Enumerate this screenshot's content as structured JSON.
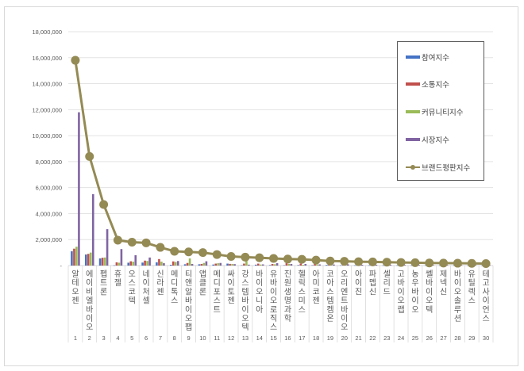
{
  "chart_data": {
    "type": "bar",
    "title": "",
    "xlabel": "",
    "ylabel": "",
    "ylim": [
      0,
      18000000
    ],
    "yticks": [
      0,
      2000000,
      4000000,
      6000000,
      8000000,
      10000000,
      12000000,
      14000000,
      16000000,
      18000000
    ],
    "ytick_labels": [
      "-",
      "2,000,000",
      "4,000,000",
      "6,000,000",
      "8,000,000",
      "10,000,000",
      "12,000,000",
      "14,000,000",
      "16,000,000",
      "18,000,000"
    ],
    "grid": true,
    "legend_position": "upper right",
    "ranks": [
      "1",
      "2",
      "3",
      "4",
      "5",
      "6",
      "7",
      "8",
      "9",
      "10",
      "11",
      "12",
      "13",
      "14",
      "15",
      "16",
      "17",
      "18",
      "19",
      "20",
      "21",
      "22",
      "23",
      "24",
      "25",
      "26",
      "27",
      "28",
      "29",
      "30"
    ],
    "categories": [
      "알테오젠",
      "에이비엘바이오",
      "펩트론",
      "휴젤",
      "오스코텍",
      "네이처셀",
      "신라젠",
      "메디톡스",
      "티앤알바이오팹",
      "앱클론",
      "메디포스트",
      "싸이토젠",
      "강스템바이오텍",
      "바이오니아",
      "유바이오로직스",
      "진원생명과학",
      "헬릭스미스",
      "아미코젠",
      "코아스템켐온",
      "오리엔트바이오",
      "아이진",
      "파멥신",
      "셀리드",
      "고바이오랩",
      "농우바이오",
      "쎌바이오텍",
      "제넥신",
      "바이오솔루션",
      "유틸렉스",
      "테고사이언스"
    ],
    "series": [
      {
        "name": "참여지수",
        "type": "bar",
        "color": "#4472c4",
        "values": [
          1100000,
          850000,
          550000,
          20000,
          220000,
          230000,
          250000,
          60000,
          100000,
          100000,
          80000,
          150000,
          30000,
          70000,
          40000,
          30000,
          40000,
          30000,
          50000,
          20000,
          20000,
          20000,
          15000,
          20000,
          15000,
          15000,
          15000,
          15000,
          15000,
          10000
        ]
      },
      {
        "name": "소통지수",
        "type": "bar",
        "color": "#c0504d",
        "values": [
          1300000,
          900000,
          600000,
          250000,
          330000,
          380000,
          500000,
          320000,
          200000,
          120000,
          150000,
          130000,
          150000,
          150000,
          120000,
          180000,
          150000,
          120000,
          60000,
          40000,
          40000,
          40000,
          30000,
          40000,
          30000,
          30000,
          30000,
          30000,
          20000,
          20000
        ]
      },
      {
        "name": "커뮤니티지수",
        "type": "bar",
        "color": "#9bbb59",
        "values": [
          1450000,
          1000000,
          620000,
          220000,
          300000,
          350000,
          300000,
          280000,
          550000,
          200000,
          180000,
          120000,
          350000,
          80000,
          100000,
          130000,
          60000,
          80000,
          40000,
          30000,
          30000,
          30000,
          20000,
          30000,
          20000,
          20000,
          20000,
          20000,
          15000,
          15000
        ]
      },
      {
        "name": "시장지수",
        "type": "bar",
        "color": "#8064a2",
        "values": [
          11800000,
          5500000,
          2800000,
          1270000,
          800000,
          620000,
          180000,
          350000,
          120000,
          330000,
          200000,
          110000,
          70000,
          90000,
          180000,
          120000,
          120000,
          90000,
          80000,
          100000,
          60000,
          60000,
          60000,
          50000,
          60000,
          50000,
          50000,
          50000,
          40000,
          40000
        ]
      },
      {
        "name": "브랜드평판지수",
        "type": "line",
        "color": "#948a54",
        "values": [
          15800000,
          8400000,
          4700000,
          1950000,
          1800000,
          1750000,
          1400000,
          1100000,
          1050000,
          1000000,
          850000,
          700000,
          650000,
          600000,
          550000,
          500000,
          480000,
          420000,
          350000,
          330000,
          300000,
          280000,
          260000,
          240000,
          220000,
          200000,
          190000,
          180000,
          170000,
          150000
        ]
      }
    ]
  },
  "legend": {
    "items": [
      {
        "label": "참여지수",
        "icon": "blue-bar-swatch"
      },
      {
        "label": "소통지수",
        "icon": "red-bar-swatch"
      },
      {
        "label": "커뮤니티지수",
        "icon": "green-bar-swatch"
      },
      {
        "label": "시장지수",
        "icon": "purple-bar-swatch"
      },
      {
        "label": "브랜드평판지수",
        "icon": "line-marker-swatch"
      }
    ]
  },
  "colors": {
    "participation": "#4472c4",
    "communication": "#c0504d",
    "community": "#9bbb59",
    "market": "#8064a2",
    "brand": "#948a54",
    "grid": "#e0e0e0",
    "axis_text": "#595959"
  }
}
